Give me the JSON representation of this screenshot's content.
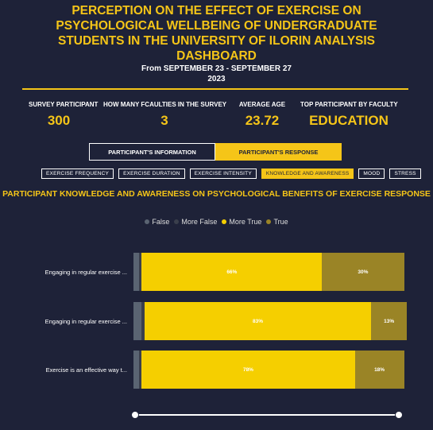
{
  "header": {
    "title_lines": [
      "PERCEPTION ON THE EFFECT OF EXERCISE ON",
      "PSYCHOLOGICAL WELLBEING OF UNDERGRADUATE",
      "STUDENTS IN THE UNIVERSITY OF ILORIN ANALYSIS",
      "DASHBOARD"
    ],
    "date_range": "From SEPTEMBER 23 - SEPTEMBER 27",
    "year": "2023"
  },
  "kpis": [
    {
      "label": "SURVEY PARTICIPANT",
      "value": "300"
    },
    {
      "label": "HOW MANY FCAULTIES IN THE SURVEY",
      "value": "3"
    },
    {
      "label": "AVERAGE AGE",
      "value": "23.72"
    },
    {
      "label": "TOP PARTICIPANT BY FACULTY",
      "value": "EDUCATION"
    }
  ],
  "tabs": [
    {
      "label": "PARTICIPANT'S INFORMATION",
      "active": false
    },
    {
      "label": "PARTICIPANT'S RESPONSE",
      "active": true
    }
  ],
  "chips": [
    {
      "label": "EXERCISE FREQUENCY",
      "active": false
    },
    {
      "label": "EXERCISE DURATION",
      "active": false
    },
    {
      "label": "EXERCISE INTENSITY",
      "active": false
    },
    {
      "label": "KNOWLEDGE AND AWARENESS",
      "active": true
    },
    {
      "label": "MOOD",
      "active": false
    },
    {
      "label": "STRESS",
      "active": false
    }
  ],
  "colors": {
    "accent": "#f5c518",
    "false": "#5a6472",
    "more_false": "#3a3f4c",
    "more_true": "#f5cf00",
    "true": "#9a8426"
  },
  "chart_data": {
    "type": "bar",
    "orientation": "horizontal",
    "stacked": true,
    "title": "PARTICIPANT KNOWLEDGE AND AWARENESS ON PSYCHOLOGICAL BENEFITS OF EXERCISE RESPONSE",
    "legend_position": "top",
    "xlim": [
      0,
      100
    ],
    "categories": [
      "Engaging in regular exercise ...",
      "Engaging in regular exercise ...",
      "Exercise is an effective way t..."
    ],
    "series": [
      {
        "name": "False",
        "values": [
          2,
          3,
          2
        ],
        "labels": [
          "",
          "",
          ""
        ]
      },
      {
        "name": "More False",
        "values": [
          1,
          1,
          1
        ],
        "labels": [
          "",
          "",
          ""
        ]
      },
      {
        "name": "More True",
        "values": [
          66,
          83,
          78
        ],
        "labels": [
          "66%",
          "83%",
          "78%"
        ]
      },
      {
        "name": "True",
        "values": [
          30,
          13,
          18
        ],
        "labels": [
          "30%",
          "13%",
          "18%"
        ]
      }
    ]
  }
}
